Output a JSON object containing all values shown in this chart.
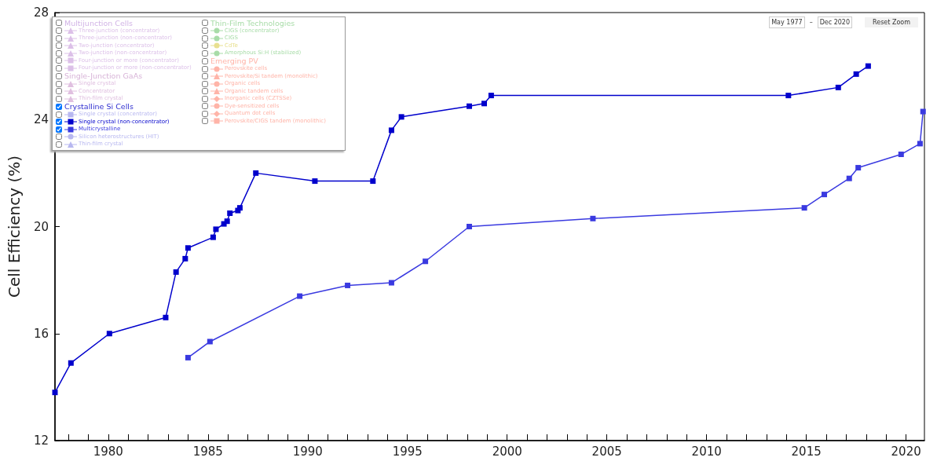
{
  "chart_data": {
    "type": "line",
    "ylabel": "Cell Efficiency (%)",
    "xlim": [
      1977.33,
      2020.92
    ],
    "xticks": [
      {
        "value": 1978,
        "label": null
      },
      {
        "value": 1979,
        "label": null
      },
      1980,
      {
        "value": 1981,
        "label": null
      },
      {
        "value": 1982,
        "label": null
      },
      {
        "value": 1983,
        "label": null
      },
      {
        "value": 1984,
        "label": null
      },
      1985,
      {
        "value": 1986,
        "label": null
      },
      {
        "value": 1987,
        "label": null
      },
      {
        "value": 1988,
        "label": null
      },
      {
        "value": 1989,
        "label": null
      },
      1990,
      {
        "value": 1991,
        "label": null
      },
      {
        "value": 1992,
        "label": null
      },
      {
        "value": 1993,
        "label": null
      },
      {
        "value": 1994,
        "label": null
      },
      1995,
      {
        "value": 1996,
        "label": null
      },
      {
        "value": 1997,
        "label": null
      },
      {
        "value": 1998,
        "label": null
      },
      {
        "value": 1999,
        "label": null
      },
      2000,
      {
        "value": 2001,
        "label": null
      },
      {
        "value": 2002,
        "label": null
      },
      {
        "value": 2003,
        "label": null
      },
      {
        "value": 2004,
        "label": null
      },
      2005,
      {
        "value": 2006,
        "label": null
      },
      {
        "value": 2007,
        "label": null
      },
      {
        "value": 2008,
        "label": null
      },
      {
        "value": 2009,
        "label": null
      },
      2010,
      {
        "value": 2011,
        "label": null
      },
      {
        "value": 2012,
        "label": null
      },
      {
        "value": 2013,
        "label": null
      },
      {
        "value": 2014,
        "label": null
      },
      2015,
      {
        "value": 2016,
        "label": null
      },
      {
        "value": 2017,
        "label": null
      },
      {
        "value": 2018,
        "label": null
      },
      {
        "value": 2019,
        "label": null
      },
      2020
    ],
    "ylim": [
      12,
      28
    ],
    "yticks": [
      12,
      16,
      20,
      24,
      28
    ],
    "grid": false,
    "legend": "top left",
    "line_style": "solid",
    "annotations": [
      "May 1977",
      "–",
      "Dec 2020",
      "Reset Zoom"
    ],
    "series": [
      {
        "name": "Multijunction Cells",
        "color": "#d2b4e6",
        "marker": "none"
      },
      {
        "name": "Three-junction (concentrator)",
        "color": "#dcc0e8",
        "marker": "triangle"
      },
      {
        "name": "Three-junction (non-concentrator)",
        "color": "#dcc0e8",
        "marker": "triangle"
      },
      {
        "name": "Two-junction (concentrator)",
        "color": "#dcc0e8",
        "marker": "triangle"
      },
      {
        "name": "Two-junction (non-concentrator)",
        "color": "#dcc0e8",
        "marker": "triangle"
      },
      {
        "name": "Four-junction or more (concentrator)",
        "color": "#dcc0e8",
        "marker": "square"
      },
      {
        "name": "Four-junction or more (non-concentrator)",
        "color": "#dcc0e8",
        "marker": "square"
      },
      {
        "name": "Single-Junction GaAs",
        "color": "#d8b4d8",
        "marker": "none"
      },
      {
        "name": "Single crystal",
        "color": "#e0c0e0",
        "marker": "triangle"
      },
      {
        "name": "Concentrator",
        "color": "#e0c0e0",
        "marker": "triangle"
      },
      {
        "name": "Thin-film crystal",
        "color": "#e0c0e0",
        "marker": "triangle"
      },
      {
        "name": "Crystalline Si Cells",
        "color": "#3030d0",
        "marker": "none"
      },
      {
        "name": "Single crystal (concentrator)",
        "color": "#b8b8f0",
        "marker": "square"
      },
      {
        "name": "Single crystal (non-concentrator)",
        "color": "#0000cc",
        "marker": "square",
        "x": [
          1977.33,
          1978.13,
          1980.06,
          1982.88,
          1983.4,
          1983.86,
          1984.0,
          1985.26,
          1985.4,
          1985.8,
          1985.96,
          1986.1,
          1986.5,
          1986.6,
          1987.4,
          1990.36,
          1993.27,
          1994.2,
          1994.7,
          1998.1,
          1998.85,
          1999.2,
          2014.1,
          2016.6,
          2017.5,
          2018.1
        ],
        "values": [
          13.8,
          14.9,
          16.0,
          16.6,
          18.3,
          18.8,
          19.2,
          19.6,
          19.9,
          20.1,
          20.2,
          20.5,
          20.6,
          20.7,
          22.0,
          21.7,
          21.7,
          23.6,
          24.1,
          24.5,
          24.6,
          24.9,
          24.9,
          25.2,
          25.7,
          26.0
        ]
      },
      {
        "name": "Multicrystalline",
        "color": "#3a3ae0",
        "marker": "square",
        "x": [
          1984.0,
          1985.1,
          1989.6,
          1992.0,
          1994.2,
          1995.9,
          1998.1,
          2004.3,
          2014.9,
          2015.9,
          2017.15,
          2017.6,
          2019.75,
          2020.7,
          2020.85
        ],
        "values": [
          15.1,
          15.7,
          17.4,
          17.8,
          17.9,
          18.7,
          20.0,
          20.3,
          20.7,
          21.2,
          21.8,
          22.2,
          22.7,
          23.1,
          24.3
        ]
      },
      {
        "name": "Silicon heterostructures (HIT)",
        "color": "#b8b8f0",
        "marker": "circle"
      },
      {
        "name": "Thin-film crystal",
        "color": "#b8b8f0",
        "marker": "triangle"
      },
      {
        "name": "Thin-Film Technologies",
        "color": "#a8dca8",
        "marker": "none"
      },
      {
        "name": "CIGS (concentrator)",
        "color": "#a8dca8",
        "marker": "circle"
      },
      {
        "name": "CIGS",
        "color": "#a8dca8",
        "marker": "circle"
      },
      {
        "name": "CdTe",
        "color": "#e8e090",
        "marker": "circle"
      },
      {
        "name": "Amorphous Si:H (stabilized)",
        "color": "#a8dca8",
        "marker": "circle"
      },
      {
        "name": "Emerging PV",
        "color": "#ffb4a8",
        "marker": "none"
      },
      {
        "name": "Perovskite cells",
        "color": "#ffb4a8",
        "marker": "circle"
      },
      {
        "name": "Perovskite/Si tandem (monolithic)",
        "color": "#ffb4a8",
        "marker": "triangle"
      },
      {
        "name": "Organic cells",
        "color": "#ffb4a8",
        "marker": "circle"
      },
      {
        "name": "Organic tandem cells",
        "color": "#ffb4a8",
        "marker": "triangle"
      },
      {
        "name": "Inorganic cells (CZTSSe)",
        "color": "#ffb4a8",
        "marker": "diamond"
      },
      {
        "name": "Dye-sensitized cells",
        "color": "#ffb4a8",
        "marker": "circle"
      },
      {
        "name": "Quantum dot cells",
        "color": "#ffb4a8",
        "marker": "diamond"
      },
      {
        "name": "Perovskite/CIGS tandem (monolithic)",
        "color": "#ffb4a8",
        "marker": "square"
      }
    ]
  }
}
